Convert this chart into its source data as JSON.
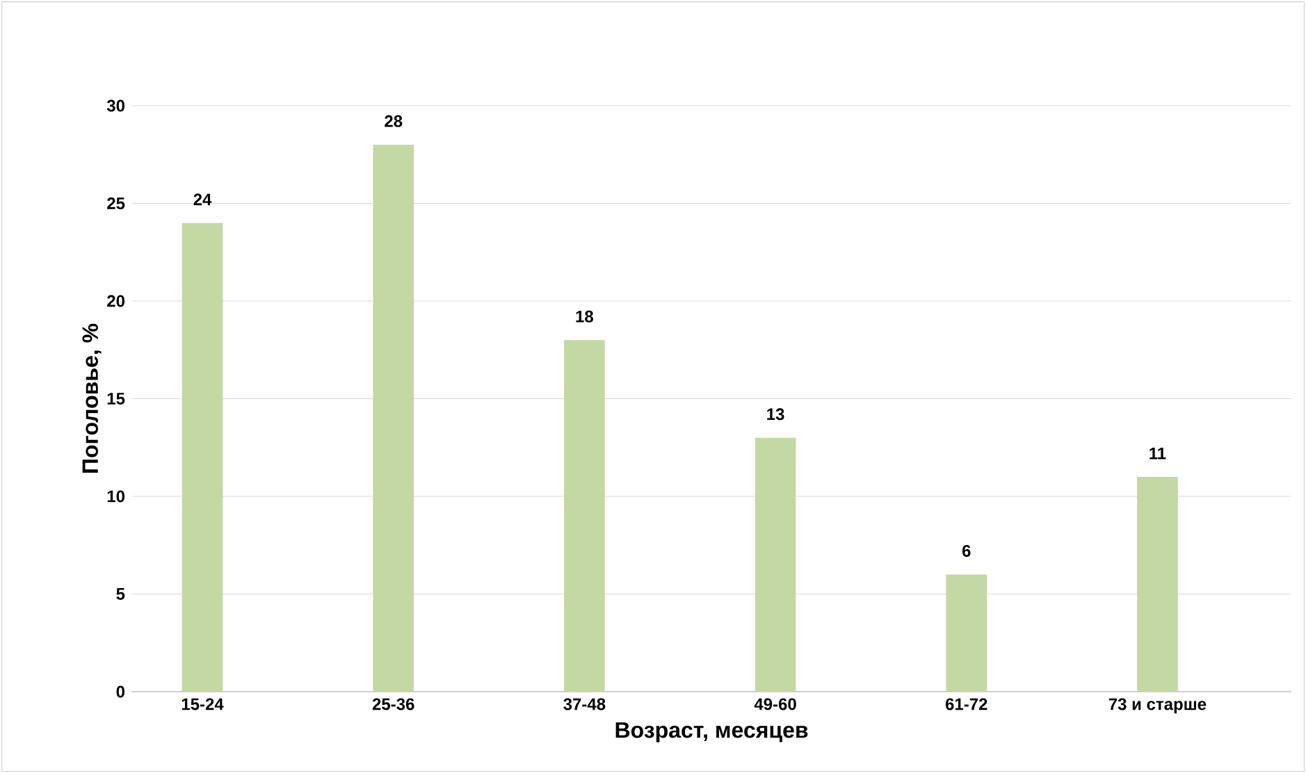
{
  "chart_data": {
    "type": "bar",
    "xlabel": "Возраст, месяцев",
    "ylabel": "Поголовье, %",
    "categories": [
      "15-24",
      "25-36",
      "37-48",
      "49-60",
      "61-72",
      "73 и старше"
    ],
    "values": [
      24,
      28,
      18,
      13,
      6,
      11
    ],
    "color": "#c4d8a4",
    "ylim": [
      0,
      30
    ],
    "yticks": [
      0,
      5,
      10,
      15,
      20,
      25,
      30
    ],
    "grid": "y",
    "data_labels": true
  }
}
